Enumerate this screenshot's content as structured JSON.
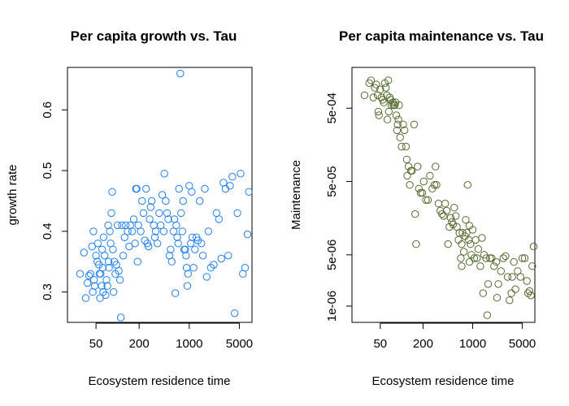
{
  "chart_data": [
    {
      "type": "scatter",
      "title": "Per capita growth vs. Tau",
      "xlabel": "Ecosystem residence time",
      "ylabel": "growth rate",
      "x_scale": "log",
      "y_scale": "linear",
      "xlim": [
        20,
        7500
      ],
      "ylim": [
        0.25,
        0.67
      ],
      "x_ticks": [
        50,
        200,
        1000,
        5000
      ],
      "y_ticks": [
        0.3,
        0.4,
        0.5,
        0.6
      ],
      "grid": false,
      "point_color": "#1e7ff0",
      "series": [
        {
          "points": [
            [
              30,
              0.33
            ],
            [
              34,
              0.365
            ],
            [
              36,
              0.29
            ],
            [
              38,
              0.315
            ],
            [
              40,
              0.327
            ],
            [
              42,
              0.33
            ],
            [
              44,
              0.375
            ],
            [
              45,
              0.3
            ],
            [
              46,
              0.4
            ],
            [
              47,
              0.32
            ],
            [
              48,
              0.31
            ],
            [
              50,
              0.36
            ],
            [
              52,
              0.35
            ],
            [
              53,
              0.38
            ],
            [
              55,
              0.345
            ],
            [
              56,
              0.33
            ],
            [
              57,
              0.29
            ],
            [
              58,
              0.33
            ],
            [
              60,
              0.31
            ],
            [
              61,
              0.37
            ],
            [
              62,
              0.34
            ],
            [
              63,
              0.3
            ],
            [
              64,
              0.39
            ],
            [
              66,
              0.36
            ],
            [
              68,
              0.295
            ],
            [
              70,
              0.32
            ],
            [
              72,
              0.31
            ],
            [
              74,
              0.41
            ],
            [
              75,
              0.35
            ],
            [
              76,
              0.34
            ],
            [
              78,
              0.4
            ],
            [
              80,
              0.38
            ],
            [
              82,
              0.43
            ],
            [
              84,
              0.465
            ],
            [
              86,
              0.37
            ],
            [
              88,
              0.3
            ],
            [
              90,
              0.35
            ],
            [
              93,
              0.33
            ],
            [
              96,
              0.345
            ],
            [
              100,
              0.41
            ],
            [
              104,
              0.335
            ],
            [
              108,
              0.32
            ],
            [
              111,
              0.258
            ],
            [
              115,
              0.41
            ],
            [
              120,
              0.36
            ],
            [
              125,
              0.39
            ],
            [
              130,
              0.41
            ],
            [
              138,
              0.4
            ],
            [
              145,
              0.375
            ],
            [
              150,
              0.41
            ],
            [
              160,
              0.4
            ],
            [
              168,
              0.42
            ],
            [
              175,
              0.38
            ],
            [
              180,
              0.47
            ],
            [
              185,
              0.47
            ],
            [
              190,
              0.35
            ],
            [
              195,
              0.41
            ],
            [
              210,
              0.4
            ],
            [
              220,
              0.45
            ],
            [
              230,
              0.43
            ],
            [
              240,
              0.385
            ],
            [
              250,
              0.47
            ],
            [
              260,
              0.38
            ],
            [
              270,
              0.375
            ],
            [
              280,
              0.42
            ],
            [
              290,
              0.44
            ],
            [
              300,
              0.45
            ],
            [
              320,
              0.41
            ],
            [
              330,
              0.39
            ],
            [
              340,
              0.4
            ],
            [
              360,
              0.38
            ],
            [
              380,
              0.43
            ],
            [
              400,
              0.41
            ],
            [
              420,
              0.46
            ],
            [
              440,
              0.4
            ],
            [
              450,
              0.495
            ],
            [
              470,
              0.45
            ],
            [
              490,
              0.43
            ],
            [
              510,
              0.42
            ],
            [
              530,
              0.36
            ],
            [
              550,
              0.37
            ],
            [
              570,
              0.35
            ],
            [
              600,
              0.4
            ],
            [
              620,
              0.42
            ],
            [
              640,
              0.298
            ],
            [
              660,
              0.41
            ],
            [
              680,
              0.39
            ],
            [
              700,
              0.38
            ],
            [
              720,
              0.47
            ],
            [
              750,
              0.66
            ],
            [
              770,
              0.43
            ],
            [
              800,
              0.4
            ],
            [
              820,
              0.45
            ],
            [
              850,
              0.37
            ],
            [
              880,
              0.37
            ],
            [
              900,
              0.36
            ],
            [
              920,
              0.34
            ],
            [
              940,
              0.31
            ],
            [
              960,
              0.33
            ],
            [
              1000,
              0.475
            ],
            [
              1050,
              0.38
            ],
            [
              1080,
              0.465
            ],
            [
              1100,
              0.39
            ],
            [
              1150,
              0.34
            ],
            [
              1200,
              0.37
            ],
            [
              1260,
              0.39
            ],
            [
              1320,
              0.385
            ],
            [
              1400,
              0.45
            ],
            [
              1480,
              0.38
            ],
            [
              1550,
              0.36
            ],
            [
              1650,
              0.47
            ],
            [
              1750,
              0.325
            ],
            [
              1850,
              0.4
            ],
            [
              2000,
              0.34
            ],
            [
              2200,
              0.345
            ],
            [
              2400,
              0.43
            ],
            [
              2600,
              0.42
            ],
            [
              2800,
              0.355
            ],
            [
              3000,
              0.48
            ],
            [
              3200,
              0.47
            ],
            [
              3500,
              0.36
            ],
            [
              3700,
              0.475
            ],
            [
              4000,
              0.49
            ],
            [
              4300,
              0.265
            ],
            [
              4700,
              0.43
            ],
            [
              5200,
              0.495
            ],
            [
              5600,
              0.33
            ],
            [
              6000,
              0.34
            ],
            [
              6500,
              0.395
            ],
            [
              6800,
              0.465
            ]
          ]
        }
      ]
    },
    {
      "type": "scatter",
      "title": "Per capita maintenance vs. Tau",
      "xlabel": "Ecosystem residence time",
      "ylabel": "Maintenance",
      "x_scale": "log",
      "y_scale": "log",
      "xlim": [
        20,
        7500
      ],
      "ylim": [
        6e-07,
        0.0018
      ],
      "x_ticks": [
        50,
        200,
        1000,
        5000
      ],
      "y_ticks": [
        1e-06,
        5e-06,
        5e-05,
        0.0005
      ],
      "y_tick_labels": [
        "1e-06",
        "5e-06",
        "5e-05",
        "5e-04"
      ],
      "grid": false,
      "point_color": "#556b2f",
      "series": [
        {
          "points": [
            [
              30,
              0.00075
            ],
            [
              35,
              0.0011
            ],
            [
              37,
              0.0012
            ],
            [
              40,
              0.0007
            ],
            [
              42,
              0.00095
            ],
            [
              44,
              0.00105
            ],
            [
              46,
              0.00075
            ],
            [
              47,
              0.00045
            ],
            [
              48,
              0.0004
            ],
            [
              50,
              0.0009
            ],
            [
              52,
              0.0007
            ],
            [
              54,
              0.00065
            ],
            [
              56,
              0.0006
            ],
            [
              58,
              0.0011
            ],
            [
              60,
              0.00095
            ],
            [
              62,
              0.00075
            ],
            [
              63,
              0.00035
            ],
            [
              65,
              0.0012
            ],
            [
              66,
              0.00045
            ],
            [
              68,
              0.0007
            ],
            [
              70,
              0.00065
            ],
            [
              72,
              0.00055
            ],
            [
              75,
              0.0006
            ],
            [
              77,
              0.00055
            ],
            [
              80,
              0.00055
            ],
            [
              82,
              0.0006
            ],
            [
              84,
              0.0004
            ],
            [
              86,
              0.00025
            ],
            [
              88,
              0.0003
            ],
            [
              90,
              0.00035
            ],
            [
              92,
              0.00055
            ],
            [
              95,
              0.0002
            ],
            [
              100,
              0.00015
            ],
            [
              105,
              0.0003
            ],
            [
              110,
              0.00025
            ],
            [
              115,
              0.00015
            ],
            [
              118,
              0.0001
            ],
            [
              120,
              6e-05
            ],
            [
              125,
              8e-05
            ],
            [
              130,
              4.5e-05
            ],
            [
              135,
              7e-05
            ],
            [
              140,
              7e-05
            ],
            [
              150,
              0.0003
            ],
            [
              155,
              1.8e-05
            ],
            [
              160,
              7e-06
            ],
            [
              168,
              8e-05
            ],
            [
              175,
              4e-05
            ],
            [
              185,
              3.5e-05
            ],
            [
              195,
              3.5e-05
            ],
            [
              205,
              5e-05
            ],
            [
              220,
              2.8e-05
            ],
            [
              235,
              2.8e-05
            ],
            [
              250,
              6e-05
            ],
            [
              270,
              4e-05
            ],
            [
              290,
              4.5e-05
            ],
            [
              300,
              8e-05
            ],
            [
              310,
              4.5e-05
            ],
            [
              330,
              2.5e-05
            ],
            [
              350,
              2e-05
            ],
            [
              370,
              1.8e-05
            ],
            [
              390,
              1.7e-05
            ],
            [
              410,
              2.5e-05
            ],
            [
              430,
              2e-05
            ],
            [
              450,
              7e-06
            ],
            [
              470,
              1.2e-05
            ],
            [
              490,
              1.6e-05
            ],
            [
              510,
              1.4e-05
            ],
            [
              530,
              1.3e-05
            ],
            [
              550,
              2.2e-05
            ],
            [
              580,
              1.7e-05
            ],
            [
              600,
              1.2e-05
            ],
            [
              630,
              8e-06
            ],
            [
              650,
              1e-05
            ],
            [
              680,
              4.5e-06
            ],
            [
              700,
              7e-06
            ],
            [
              720,
              1e-05
            ],
            [
              750,
              5.5e-06
            ],
            [
              780,
              9e-06
            ],
            [
              800,
              1.5e-05
            ],
            [
              820,
              1e-05
            ],
            [
              850,
              4.5e-05
            ],
            [
              880,
              8e-06
            ],
            [
              900,
              1.25e-05
            ],
            [
              930,
              7e-06
            ],
            [
              960,
              5e-06
            ],
            [
              1000,
              1.1e-05
            ],
            [
              1050,
              4.5e-06
            ],
            [
              1100,
              8e-06
            ],
            [
              1150,
              4.5e-06
            ],
            [
              1200,
              6e-06
            ],
            [
              1280,
              3.5e-06
            ],
            [
              1350,
              8.5e-06
            ],
            [
              1450,
              5e-06
            ],
            [
              1550,
              4.5e-06
            ],
            [
              1650,
              2e-06
            ],
            [
              1750,
              4.5e-06
            ],
            [
              1850,
              4.5e-06
            ],
            [
              2000,
              3.5e-06
            ],
            [
              2150,
              4e-06
            ],
            [
              2300,
              2e-06
            ],
            [
              2500,
              3e-06
            ],
            [
              2700,
              4.5e-06
            ],
            [
              2900,
              4.8e-06
            ],
            [
              3100,
              2.5e-06
            ],
            [
              3300,
              1.2e-06
            ],
            [
              3500,
              1.5e-06
            ],
            [
              3800,
              4e-06
            ],
            [
              4000,
              1.7e-06
            ],
            [
              4300,
              3e-06
            ],
            [
              4700,
              2.5e-06
            ],
            [
              5000,
              4.5e-06
            ],
            [
              5400,
              4.5e-06
            ],
            [
              5800,
              2.2e-06
            ],
            [
              6000,
              1.5e-06
            ],
            [
              6300,
              1.6e-06
            ],
            [
              6600,
              1.4e-06
            ],
            [
              6900,
              3.5e-06
            ],
            [
              7200,
              6.5e-06
            ],
            [
              1400,
              1.5e-06
            ],
            [
              1600,
              7.5e-07
            ],
            [
              2200,
              1.3e-06
            ],
            [
              3600,
              2.5e-06
            ],
            [
              900,
              4e-06
            ],
            [
              700,
              3.5e-06
            ]
          ]
        }
      ]
    }
  ]
}
